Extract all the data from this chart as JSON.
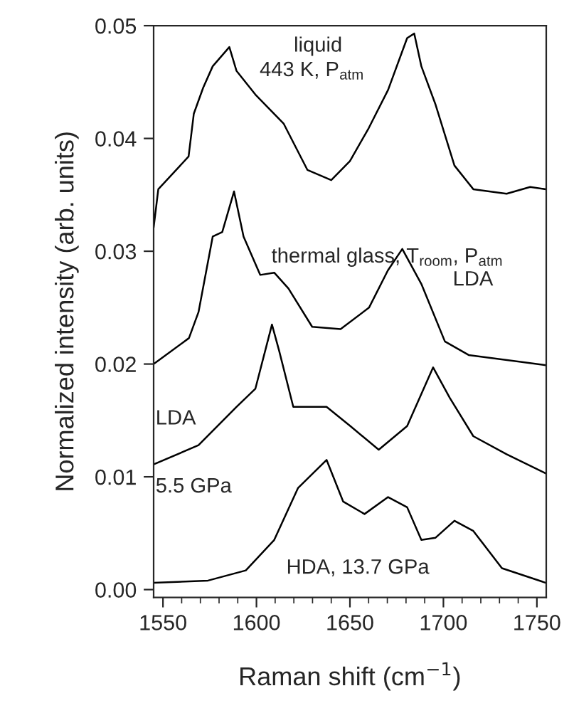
{
  "chart_data": {
    "type": "line",
    "xlabel": "Raman shift (cm$^{−1}$)",
    "ylabel": "Normalized intensity (arb. units)",
    "xlim": [
      1545,
      1755
    ],
    "ylim": [
      -0.0007,
      0.05
    ],
    "xticks": [
      1550,
      1600,
      1650,
      1700,
      1750
    ],
    "yticks": [
      {
        "value": 0,
        "label": "0.00"
      },
      {
        "value": 0.01,
        "label": "0.01"
      },
      {
        "value": 0.02,
        "label": "0.02"
      },
      {
        "value": 0.03,
        "label": "0.03"
      },
      {
        "value": 0.04,
        "label": "0.04"
      },
      {
        "value": 0.05,
        "label": "0.05"
      }
    ],
    "grid": false,
    "legend": false,
    "marker": "none",
    "line_style": "solid",
    "series": [
      {
        "color": "#000000",
        "x": [
          1545,
          1547.5,
          1563.7,
          1566.5,
          1571.5,
          1576.6,
          1585.5,
          1589.3,
          1599.4,
          1614.6,
          1627.3,
          1640,
          1650,
          1660,
          1670.4,
          1680.6,
          1684.4,
          1688.2,
          1695.8,
          1705.9,
          1716,
          1733.8,
          1746.4,
          1754.8
        ],
        "values": [
          0.0321,
          0.0355,
          0.0384,
          0.0422,
          0.0445,
          0.0464,
          0.0481,
          0.046,
          0.0439,
          0.0413,
          0.0372,
          0.0363,
          0.038,
          0.0409,
          0.0443,
          0.0489,
          0.0493,
          0.0464,
          0.043,
          0.0376,
          0.0355,
          0.0351,
          0.0357,
          0.0355
        ]
      },
      {
        "color": "#000000",
        "x": [
          1545,
          1563.9,
          1569,
          1576.6,
          1581.7,
          1588,
          1593.1,
          1602,
          1609.5,
          1617.1,
          1629.8,
          1645,
          1660.2,
          1670.3,
          1678,
          1688.2,
          1700.8,
          1713.5,
          1754.8
        ],
        "values": [
          0.02,
          0.0223,
          0.0246,
          0.0313,
          0.0317,
          0.0353,
          0.0313,
          0.0279,
          0.0281,
          0.0267,
          0.0233,
          0.0231,
          0.025,
          0.0283,
          0.0302,
          0.0271,
          0.022,
          0.0208,
          0.0199
        ]
      },
      {
        "color": "#000000",
        "x": [
          1545,
          1569,
          1589.3,
          1599.4,
          1608.3,
          1612.1,
          1619.7,
          1637.5,
          1650.2,
          1665.4,
          1680.6,
          1694.5,
          1703.4,
          1716,
          1733.8,
          1754.8
        ],
        "values": [
          0.0111,
          0.0128,
          0.0162,
          0.0178,
          0.0235,
          0.0212,
          0.0162,
          0.0162,
          0.0145,
          0.0124,
          0.0145,
          0.0197,
          0.017,
          0.0136,
          0.012,
          0.0103
        ]
      },
      {
        "color": "#000000",
        "x": [
          1545,
          1574.1,
          1594.3,
          1609.5,
          1622.2,
          1637.5,
          1646.4,
          1657.8,
          1670.4,
          1680.6,
          1688.2,
          1695.8,
          1705.9,
          1716,
          1731.3,
          1754.8
        ],
        "values": [
          0.0006,
          0.0008,
          0.0017,
          0.0044,
          0.009,
          0.0115,
          0.0078,
          0.0067,
          0.0082,
          0.0073,
          0.0044,
          0.0046,
          0.0061,
          0.0052,
          0.0019,
          0.0006
        ]
      }
    ],
    "annotations": [
      "liquid",
      "443 K, P$_{atm}$",
      "thermal glass, T$_{room}$, P$_{atm}$",
      "LDA",
      "LDA",
      "5.5 GPa",
      "HDA, 13.7 GPa"
    ]
  }
}
